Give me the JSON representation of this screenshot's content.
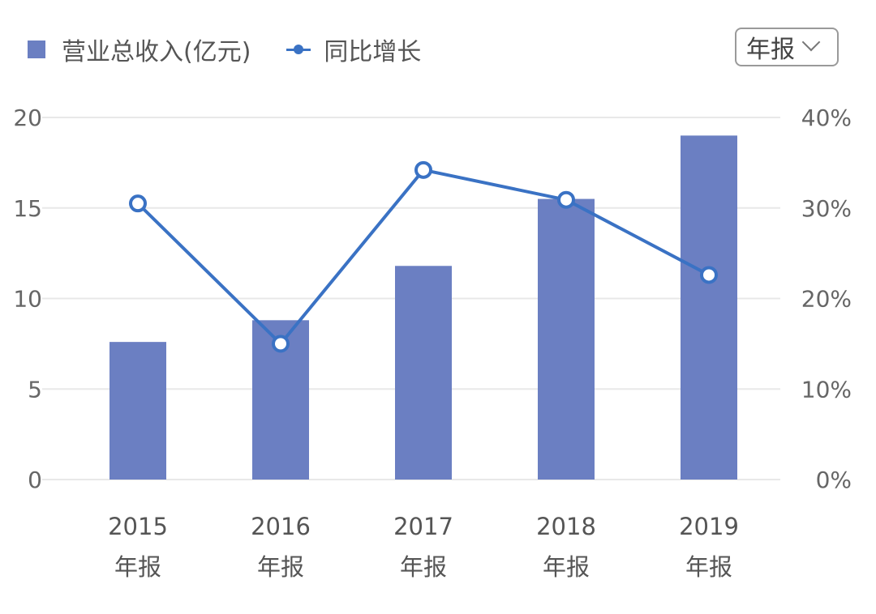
{
  "legend": {
    "bar_label": "营业总收入(亿元)",
    "line_label": "同比增长"
  },
  "period_select": {
    "selected": "年报"
  },
  "colors": {
    "bar": "#6b7fc2",
    "line": "#3a72c4",
    "grid": "#e8e8e8"
  },
  "chart_data": {
    "type": "bar",
    "categories": [
      "2015",
      "2016",
      "2017",
      "2018",
      "2019"
    ],
    "category_sublabel": "年报",
    "series": [
      {
        "name": "营业总收入(亿元)",
        "type": "bar",
        "axis": "left",
        "values": [
          7.6,
          8.8,
          11.8,
          15.5,
          19.0
        ]
      },
      {
        "name": "同比增长",
        "type": "line",
        "axis": "right",
        "values": [
          30.5,
          15.0,
          34.2,
          30.9,
          22.6
        ]
      }
    ],
    "y_left": {
      "ticks": [
        "0",
        "5",
        "10",
        "15",
        "20"
      ],
      "range": [
        0,
        20
      ]
    },
    "y_right": {
      "ticks": [
        "0%",
        "10%",
        "20%",
        "30%",
        "40%"
      ],
      "range": [
        0,
        40
      ]
    },
    "legend_position": "top-left",
    "grid": true
  }
}
